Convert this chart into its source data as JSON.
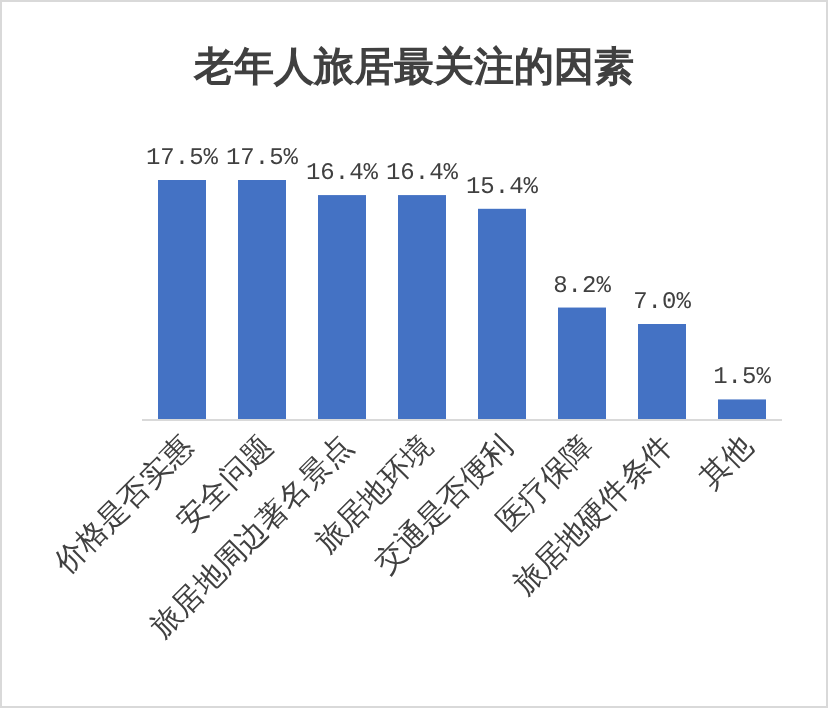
{
  "chart_data": {
    "type": "bar",
    "title": "老年人旅居最关注的因素",
    "categories": [
      "价格是否实惠",
      "安全问题",
      "旅居地周边著名景点",
      "旅居地环境",
      "交通是否便利",
      "医疗保障",
      "旅居地硬件条件",
      "其他"
    ],
    "values": [
      17.5,
      17.5,
      16.4,
      16.4,
      15.4,
      8.2,
      7.0,
      1.5
    ],
    "value_labels": [
      "17.5%",
      "17.5%",
      "16.4%",
      "16.4%",
      "15.4%",
      "8.2%",
      "7.0%",
      "1.5%"
    ],
    "color": "#4472c4"
  }
}
